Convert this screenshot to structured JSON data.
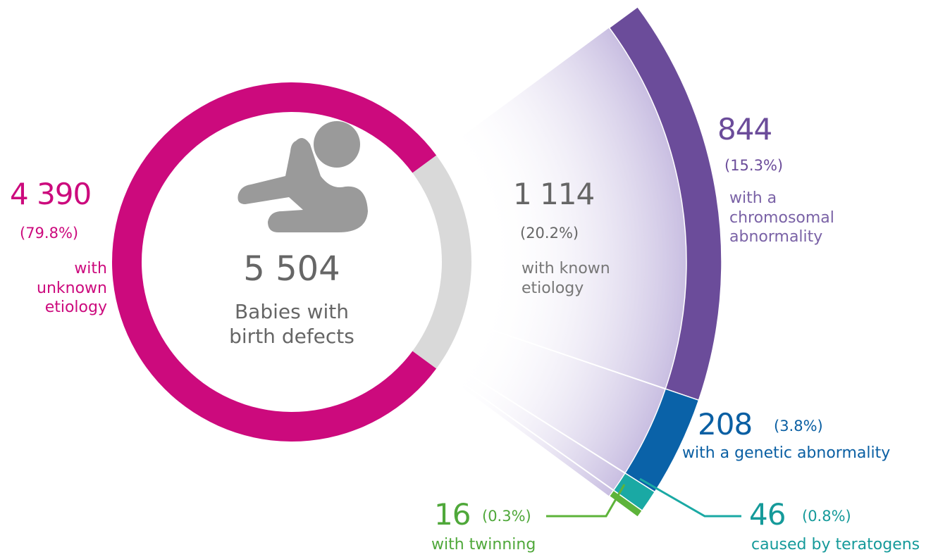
{
  "chart_data": {
    "type": "donut",
    "total": 5504,
    "total_label": "5 504",
    "center_label": "Babies with birth defects",
    "categories": [
      "with unknown etiology",
      "with known etiology"
    ],
    "values": [
      4390,
      1114
    ],
    "value_labels": [
      "4 390",
      "1 114"
    ],
    "percents": [
      79.8,
      20.2
    ],
    "percent_labels": [
      "(79.8%)",
      "(20.2%)"
    ],
    "colors": [
      "#cc0a7d",
      "#d9d9d9"
    ],
    "breakdown": {
      "categories": [
        "with a chromosomal abnormality",
        "with a genetic abnormality",
        "caused by teratogens",
        "with twinning"
      ],
      "values": [
        844,
        208,
        46,
        16
      ],
      "percents": [
        15.3,
        3.8,
        0.8,
        0.3
      ],
      "percent_labels": [
        "(15.3%)",
        "(3.8%)",
        "(0.8%)",
        "(0.3%)"
      ],
      "colors": [
        "#6b4c9a",
        "#0a62a8",
        "#1aa9a4",
        "#5db33a"
      ]
    }
  }
}
